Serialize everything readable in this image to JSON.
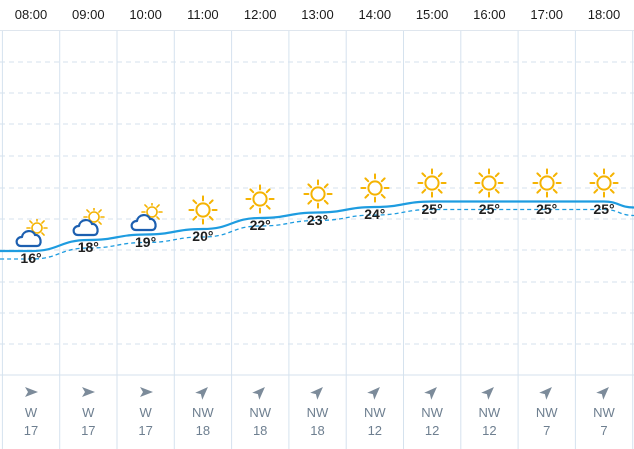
{
  "hours": [
    {
      "time": "08:00",
      "temp": "16°",
      "t": 16,
      "icon": "partly-cloudy-icon",
      "wind_dir": "W",
      "wind_speed": "17"
    },
    {
      "time": "09:00",
      "temp": "18°",
      "t": 18,
      "icon": "partly-cloudy-icon",
      "wind_dir": "W",
      "wind_speed": "17"
    },
    {
      "time": "10:00",
      "temp": "19°",
      "t": 19,
      "icon": "partly-cloudy-icon",
      "wind_dir": "W",
      "wind_speed": "17"
    },
    {
      "time": "11:00",
      "temp": "20°",
      "t": 20,
      "icon": "sun-icon",
      "wind_dir": "NW",
      "wind_speed": "18"
    },
    {
      "time": "12:00",
      "temp": "22°",
      "t": 22,
      "icon": "sun-icon",
      "wind_dir": "NW",
      "wind_speed": "18"
    },
    {
      "time": "13:00",
      "temp": "23°",
      "t": 23,
      "icon": "sun-icon",
      "wind_dir": "NW",
      "wind_speed": "18"
    },
    {
      "time": "14:00",
      "temp": "24°",
      "t": 24,
      "icon": "sun-icon",
      "wind_dir": "NW",
      "wind_speed": "12"
    },
    {
      "time": "15:00",
      "temp": "25°",
      "t": 25,
      "icon": "sun-icon",
      "wind_dir": "NW",
      "wind_speed": "12"
    },
    {
      "time": "16:00",
      "temp": "25°",
      "t": 25,
      "icon": "sun-icon",
      "wind_dir": "NW",
      "wind_speed": "12"
    },
    {
      "time": "17:00",
      "temp": "25°",
      "t": 25,
      "icon": "sun-icon",
      "wind_dir": "NW",
      "wind_speed": "7"
    },
    {
      "time": "18:00",
      "temp": "25°",
      "t": 25,
      "icon": "sun-icon",
      "wind_dir": "NW",
      "wind_speed": "7"
    }
  ],
  "colors": {
    "temperature_line": "#1e9ce0",
    "grid": "#d5e2ee",
    "sun": "#f5b301",
    "cloud": "#1c5fb0",
    "wind_arrow": "#7c8b9a",
    "wind_text": "#6e7f90"
  }
}
